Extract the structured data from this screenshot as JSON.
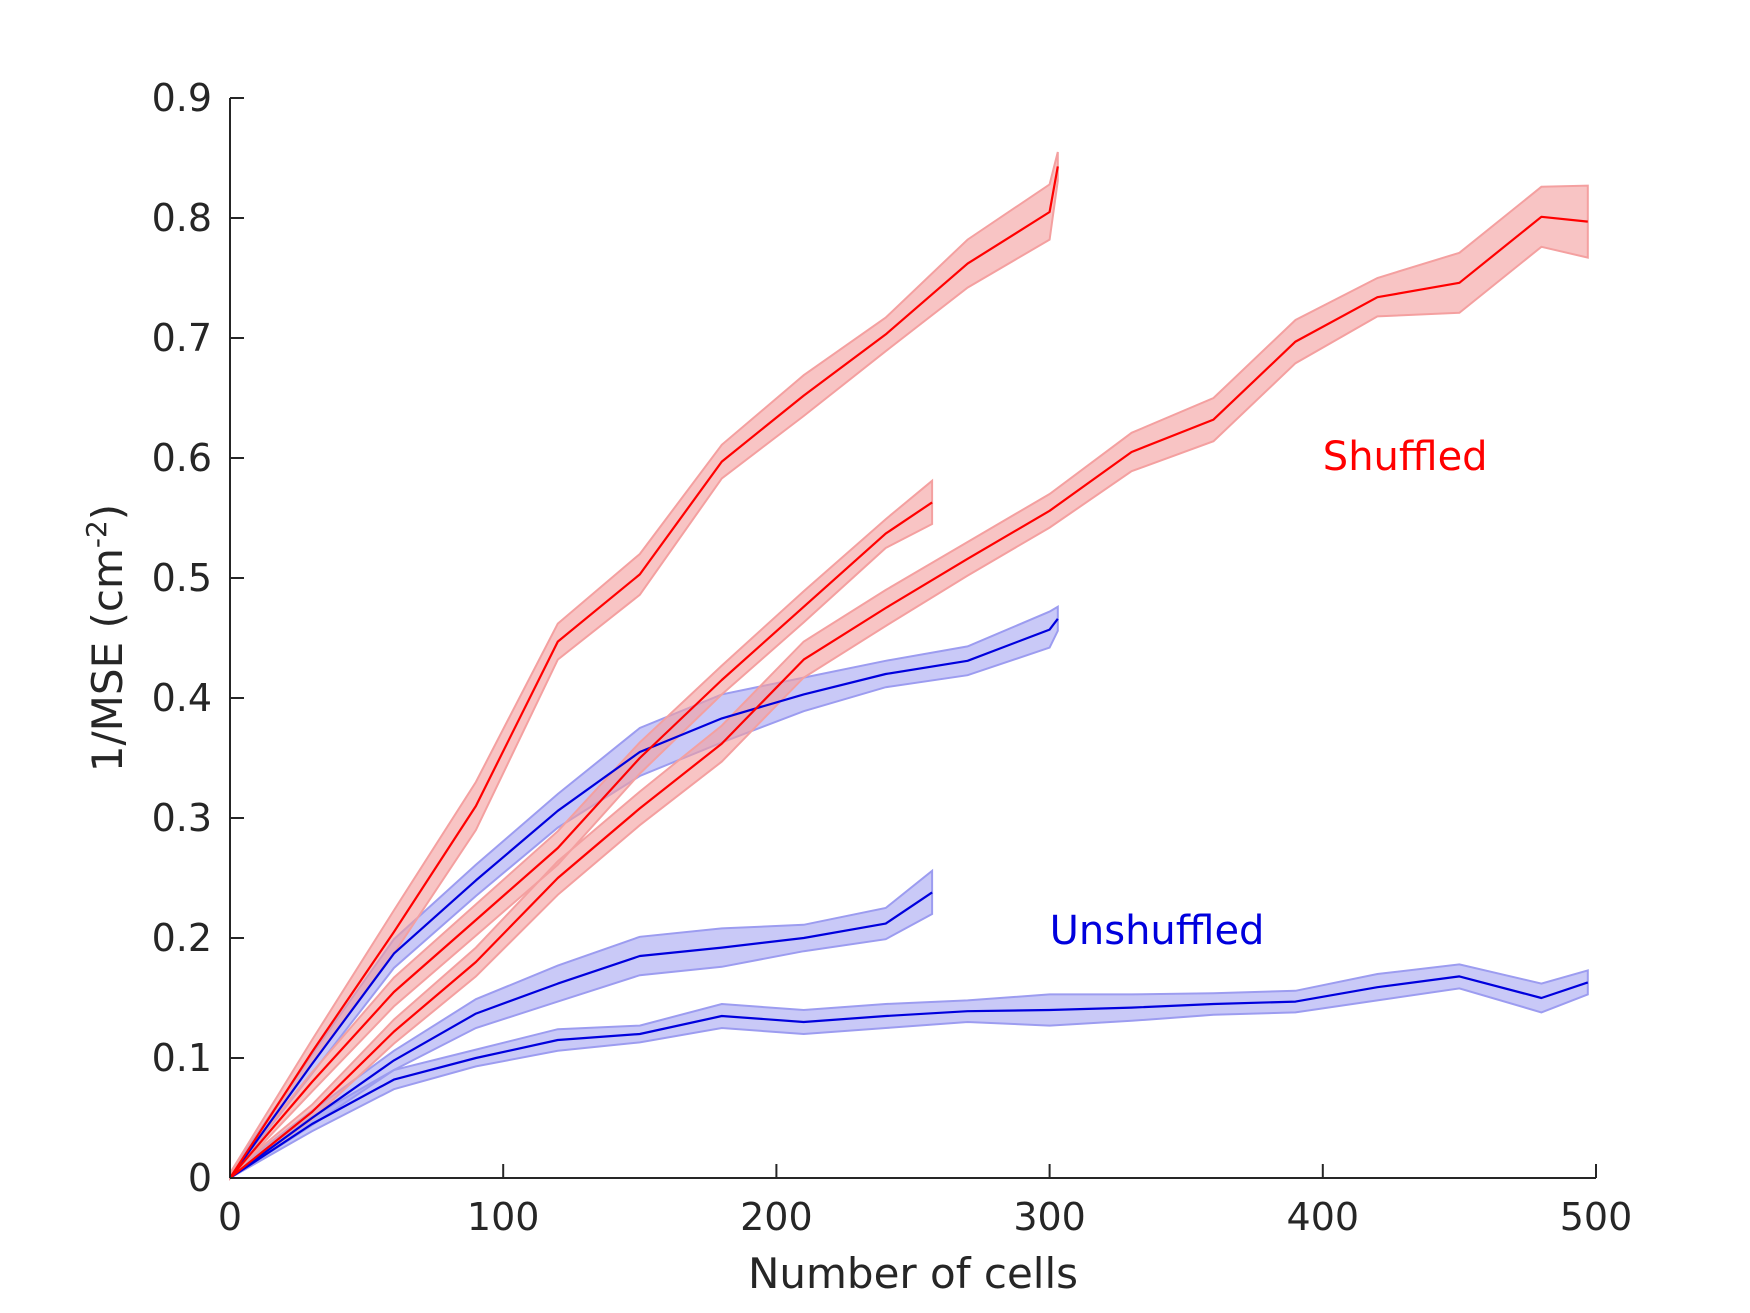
{
  "chart_data": {
    "type": "line",
    "xlabel": "Number of cells",
    "ylabel_main": "1/MSE (cm",
    "ylabel_sup": "-2",
    "ylabel_end": ")",
    "xlim": [
      0,
      500
    ],
    "ylim": [
      0,
      0.9
    ],
    "x_ticks": [
      0,
      100,
      200,
      300,
      400,
      500
    ],
    "y_ticks": [
      0,
      0.1,
      0.2,
      0.3,
      0.4,
      0.5,
      0.6,
      0.7,
      0.8,
      0.9
    ],
    "grid": false,
    "colors": {
      "shuffled": "#ff0000",
      "shuffled_band": "#f4a0a0",
      "unshuffled": "#0000dd",
      "unshuffled_band": "#9c9cf0",
      "axis": "#262626"
    },
    "annotations": [
      {
        "text": "Shuffled",
        "x": 400,
        "y": 0.59,
        "group": "shuffled"
      },
      {
        "text": "Unshuffled",
        "x": 300,
        "y": 0.195,
        "group": "unshuffled"
      }
    ],
    "series": [
      {
        "group": "shuffled",
        "x": [
          0,
          30,
          60,
          90,
          120,
          150,
          180,
          210,
          240,
          270,
          300,
          303
        ],
        "y": [
          0,
          0.105,
          0.205,
          0.31,
          0.447,
          0.503,
          0.597,
          0.652,
          0.703,
          0.762,
          0.805,
          0.843
        ],
        "err": [
          0.004,
          0.01,
          0.018,
          0.02,
          0.015,
          0.017,
          0.014,
          0.017,
          0.014,
          0.02,
          0.023,
          0.012
        ]
      },
      {
        "group": "shuffled",
        "x": [
          0,
          30,
          60,
          90,
          120,
          150,
          180,
          210,
          240,
          257
        ],
        "y": [
          0,
          0.08,
          0.155,
          0.215,
          0.275,
          0.35,
          0.415,
          0.476,
          0.537,
          0.563
        ],
        "err": [
          0.004,
          0.008,
          0.012,
          0.013,
          0.014,
          0.013,
          0.012,
          0.013,
          0.012,
          0.018
        ]
      },
      {
        "group": "shuffled",
        "x": [
          0,
          30,
          60,
          90,
          120,
          150,
          180,
          210,
          240,
          270,
          300,
          330,
          360,
          390,
          420,
          450,
          480,
          497
        ],
        "y": [
          0,
          0.055,
          0.122,
          0.18,
          0.25,
          0.308,
          0.362,
          0.432,
          0.475,
          0.516,
          0.556,
          0.605,
          0.632,
          0.697,
          0.734,
          0.746,
          0.801,
          0.797
        ],
        "err": [
          0.004,
          0.006,
          0.01,
          0.012,
          0.014,
          0.014,
          0.015,
          0.015,
          0.015,
          0.014,
          0.014,
          0.016,
          0.018,
          0.018,
          0.016,
          0.025,
          0.025,
          0.03
        ]
      },
      {
        "group": "unshuffled",
        "x": [
          0,
          30,
          60,
          90,
          120,
          150,
          180,
          210,
          240,
          270,
          300,
          303
        ],
        "y": [
          0,
          0.095,
          0.187,
          0.248,
          0.306,
          0.355,
          0.383,
          0.403,
          0.42,
          0.431,
          0.457,
          0.466
        ],
        "err": [
          0.004,
          0.008,
          0.012,
          0.013,
          0.014,
          0.02,
          0.02,
          0.014,
          0.011,
          0.012,
          0.015,
          0.01
        ]
      },
      {
        "group": "unshuffled",
        "x": [
          0,
          30,
          60,
          90,
          120,
          150,
          180,
          210,
          240,
          257
        ],
        "y": [
          0,
          0.05,
          0.098,
          0.137,
          0.162,
          0.185,
          0.192,
          0.2,
          0.212,
          0.238
        ],
        "err": [
          0.004,
          0.006,
          0.008,
          0.012,
          0.015,
          0.016,
          0.016,
          0.011,
          0.013,
          0.018
        ]
      },
      {
        "group": "unshuffled",
        "x": [
          0,
          30,
          60,
          90,
          120,
          150,
          180,
          210,
          240,
          270,
          300,
          330,
          360,
          390,
          420,
          450,
          480,
          497
        ],
        "y": [
          0,
          0.045,
          0.082,
          0.1,
          0.115,
          0.12,
          0.135,
          0.13,
          0.135,
          0.139,
          0.14,
          0.142,
          0.145,
          0.147,
          0.159,
          0.168,
          0.15,
          0.163
        ],
        "err": [
          0.004,
          0.006,
          0.008,
          0.007,
          0.009,
          0.007,
          0.01,
          0.01,
          0.01,
          0.009,
          0.013,
          0.011,
          0.009,
          0.009,
          0.011,
          0.01,
          0.012,
          0.01
        ]
      }
    ]
  }
}
